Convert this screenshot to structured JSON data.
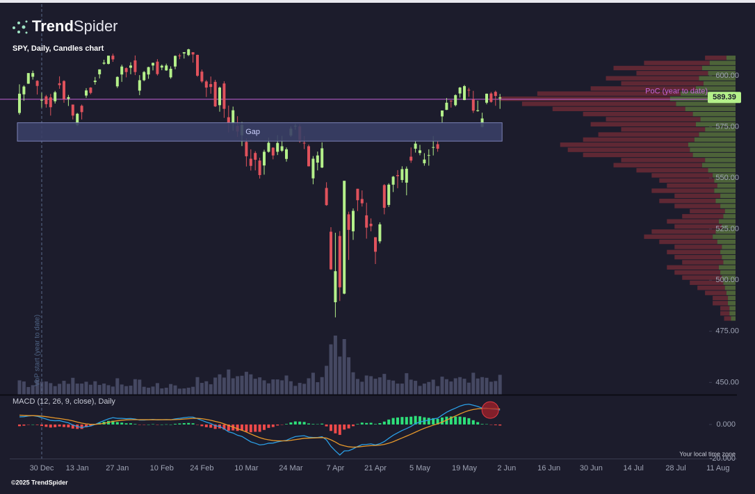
{
  "header": {
    "brand_bold": "Trend",
    "brand_light": "Spider",
    "footer": "©2025 TrendSpider"
  },
  "chart_data": [
    {
      "type": "candlestick",
      "title": "SPY, Daily, Candles chart",
      "categories": [
        null,
        null,
        null,
        null,
        null,
        "30 Dec",
        null,
        null,
        null,
        null,
        null,
        null,
        null,
        "13 Jan",
        null,
        null,
        null,
        null,
        null,
        null,
        null,
        null,
        "27 Jan",
        null,
        null,
        null,
        null,
        null,
        null,
        null,
        null,
        null,
        "10 Feb",
        null,
        null,
        null,
        null,
        null,
        null,
        null,
        null,
        "24 Feb",
        null,
        null,
        null,
        null,
        null,
        null,
        null,
        null,
        null,
        "10 Mar",
        null,
        null,
        null,
        null,
        null,
        null,
        null,
        null,
        null,
        "24 Mar",
        null,
        null,
        null,
        null,
        null,
        null,
        null,
        null,
        null,
        "7 Apr",
        null,
        null,
        null,
        null,
        null,
        null,
        null,
        null,
        "21 Apr",
        null,
        null,
        null,
        null,
        null,
        null,
        null,
        null,
        null,
        "5 May",
        null,
        null,
        null,
        null,
        null,
        null,
        null,
        null,
        null,
        "19 May",
        null,
        null,
        null,
        null,
        null,
        null,
        null,
        null
      ],
      "xticks_future": [
        "2 Jun",
        "16 Jun",
        "30 Jun",
        "14 Jul",
        "28 Jul",
        "11 Aug"
      ],
      "open": [
        581.8,
        590.9,
        596.1,
        599.5,
        597.5,
        587.9,
        589.9,
        589.4,
        587.5,
        596.3,
        597.4,
        588.7,
        585.9,
        575.8,
        585.3,
        590.3,
        594.2,
        596.9,
        600.7,
        605.9,
        605.8,
        609.8,
        594.8,
        600.6,
        603.7,
        603.9,
        607.5,
        592.7,
        597.8,
        600.6,
        605.0,
        606.9,
        604.0,
        602.6,
        599.2,
        604.5,
        609.9,
        610.9,
        610.1,
        611.5,
        610.2,
        602.0,
        597.2,
        595.9,
        597.0,
        585.6,
        596.2,
        579.7,
        576.7,
        575.5,
        570.9,
        567.6,
        559.4,
        562.2,
        558.5,
        556.1,
        562.8,
        564.8,
        562.8,
        563.3,
        559.3,
        570.8,
        575.3,
        575.2,
        567.2,
        565.5,
        549.8,
        557.5,
        555.1,
        545.1,
        523.7,
        489.2,
        521.6,
        493.4,
        532.2,
        523.9,
        544.7,
        539.7,
        531.7,
        527.6,
        521.0,
        519.0,
        546.5,
        536.8,
        546.7,
        551.4,
        549.0,
        547.7,
        560.4,
        564.3,
        562.2,
        557.2,
        561.0,
        565.1,
        566.5,
        580.1,
        583.3,
        587.8,
        585.6,
        591.3,
        588.1,
        593.1,
        588.4,
        582.7,
        575.0,
        586.8,
        591.3,
        592.1,
        588.9
      ],
      "high": [
        595.8,
        595.3,
        601.3,
        602.5,
        597.8,
        591.7,
        590.6,
        591.1,
        592.6,
        599.7,
        597.8,
        590.6,
        585.9,
        581.8,
        585.9,
        593.9,
        594.4,
        599.4,
        603.1,
        607.8,
        609.8,
        610.8,
        599.7,
        605.4,
        604.1,
        606.6,
        609.9,
        600.3,
        602.3,
        604.4,
        606.4,
        608.1,
        605.5,
        605.9,
        604.6,
        609.9,
        610.8,
        611.5,
        613.2,
        611.5,
        610.3,
        603.0,
        597.9,
        599.6,
        598.0,
        594.7,
        597.3,
        585.4,
        584.9,
        580.2,
        577.4,
        569.4,
        564.0,
        563.1,
        559.9,
        563.8,
        569.7,
        565.0,
        570.9,
        570.6,
        564.9,
        575.2,
        576.4,
        576.3,
        570.5,
        566.3,
        560.7,
        562.9,
        567.4,
        547.9,
        525.9,
        523.2,
        524.0,
        548.6,
        533.5,
        535.1,
        544.7,
        543.9,
        537.9,
        530.2,
        521.0,
        528.3,
        547.0,
        547.4,
        551.0,
        553.8,
        555.7,
        555.6,
        564.9,
        568.0,
        566.2,
        562.1,
        564.0,
        570.5,
        568.0,
        583.0,
        589.1,
        588.0,
        590.9,
        594.5,
        595.5,
        594.1,
        592.6,
        587.8,
        581.9,
        591.3,
        592.0,
        592.7,
        591.1
      ],
      "low": [
        580.9,
        587.7,
        596.0,
        598.1,
        590.8,
        584.4,
        584.4,
        580.5,
        586.4,
        593.6,
        586.8,
        585.2,
        578.6,
        575.4,
        578.6,
        589.2,
        590.9,
        595.6,
        598.7,
        605.4,
        605.5,
        606.8,
        594.0,
        597.0,
        599.2,
        600.7,
        600.3,
        590.5,
        597.3,
        598.5,
        602.6,
        600.1,
        602.7,
        602.4,
        598.5,
        603.2,
        608.1,
        608.4,
        609.6,
        606.4,
        599.5,
        596.5,
        589.6,
        591.2,
        584.7,
        582.4,
        579.4,
        572.3,
        573.1,
        570.1,
        565.6,
        555.6,
        553.6,
        553.7,
        549.7,
        551.6,
        562.4,
        559.1,
        561.2,
        562.7,
        558.0,
        570.1,
        573.6,
        567.2,
        564.1,
        555.6,
        546.9,
        553.7,
        554.8,
        536.4,
        505.0,
        481.8,
        489.8,
        493.1,
        509.9,
        519.7,
        533.8,
        536.0,
        520.3,
        523.9,
        507.9,
        518.0,
        532.2,
        535.8,
        543.1,
        545.0,
        547.7,
        541.5,
        557.4,
        562.4,
        561.1,
        556.0,
        556.0,
        561.0,
        562.8,
        577.0,
        583.2,
        584.4,
        585.0,
        589.3,
        588.0,
        589.7,
        581.8,
        582.4,
        574.7,
        586.0,
        586.8,
        585.3,
        583.8
      ],
      "close": [
        591.2,
        594.7,
        601.3,
        601.3,
        595.0,
        588.2,
        586.1,
        584.6,
        591.9,
        595.4,
        588.6,
        589.5,
        580.5,
        581.4,
        582.2,
        592.8,
        591.6,
        597.6,
        603.1,
        606.4,
        609.8,
        608.0,
        599.4,
        604.5,
        601.8,
        605.0,
        601.8,
        597.8,
        601.8,
        604.2,
        606.3,
        600.8,
        604.9,
        605.0,
        603.4,
        609.7,
        609.7,
        611.5,
        612.9,
        610.4,
        600.0,
        597.2,
        594.2,
        594.5,
        585.0,
        594.2,
        583.8,
        576.9,
        583.1,
        572.7,
        575.9,
        560.6,
        555.9,
        558.9,
        551.4,
        562.8,
        567.2,
        561.0,
        567.1,
        565.5,
        564.0,
        574.1,
        575.5,
        568.6,
        567.1,
        555.7,
        559.4,
        561.0,
        564.5,
        536.7,
        505.3,
        504.4,
        496.5,
        548.6,
        524.6,
        533.9,
        539.1,
        537.6,
        525.7,
        526.4,
        513.9,
        527.3,
        535.4,
        546.7,
        550.6,
        550.9,
        554.3,
        554.5,
        558.5,
        566.8,
        563.5,
        559.0,
        561.2,
        565.1,
        564.3,
        583.0,
        586.8,
        587.6,
        590.5,
        594.2,
        594.9,
        592.9,
        582.9,
        583.1,
        579.1,
        591.2,
        587.2,
        590.1,
        589.39
      ],
      "volume": [
        62,
        57,
        33,
        41,
        64,
        56,
        57,
        50,
        37,
        47,
        60,
        47,
        73,
        48,
        48,
        56,
        43,
        58,
        42,
        48,
        41,
        35,
        71,
        44,
        37,
        39,
        67,
        65,
        34,
        30,
        35,
        50,
        27,
        30,
        46,
        40,
        26,
        27,
        30,
        34,
        76,
        51,
        58,
        45,
        74,
        88,
        74,
        109,
        71,
        80,
        82,
        99,
        88,
        69,
        75,
        62,
        49,
        66,
        66,
        62,
        83,
        58,
        38,
        51,
        47,
        71,
        95,
        54,
        76,
        125,
        218,
        256,
        165,
        241,
        162,
        97,
        68,
        56,
        83,
        80,
        69,
        75,
        90,
        64,
        61,
        48,
        48,
        93,
        65,
        60,
        38,
        48,
        55,
        65,
        37,
        78,
        67,
        57,
        71,
        76,
        69,
        52,
        95,
        70,
        76,
        73,
        56,
        59,
        86
      ],
      "up_color": "#b4f08a",
      "down_color": "#e0525c",
      "volume_color": "#454862",
      "ylim": [
        444,
        635
      ],
      "yticks": [
        {
          "value": 450,
          "label": "450.00"
        },
        {
          "value": 475,
          "label": "475.00"
        },
        {
          "value": 500,
          "label": "500.00"
        },
        {
          "value": 525,
          "label": "525.00"
        },
        {
          "value": 550,
          "label": "550.00"
        },
        {
          "value": 575,
          "label": "575.00"
        },
        {
          "value": 600,
          "label": "600.00"
        }
      ],
      "last_price": 589.39,
      "last_price_color": "#b4f08a",
      "poc": {
        "label": "PoC (year to date)",
        "value": 588.5,
        "color": "#c563d8"
      },
      "gap": {
        "label": "Gap",
        "low": 568.0,
        "high": 577.0
      },
      "vbp_start": {
        "label": "VbP start (year to date)",
        "date": "30 Dec"
      },
      "profile": {
        "bins": [
          480,
          482.5,
          485,
          487.5,
          490,
          492.5,
          495,
          497.5,
          500,
          502.5,
          505,
          507.5,
          510,
          512.5,
          515,
          517.5,
          520,
          522.5,
          525,
          527.5,
          530,
          532.5,
          535,
          537.5,
          540,
          542.5,
          545,
          547.5,
          550,
          552.5,
          555,
          557.5,
          560,
          562.5,
          565,
          567.5,
          570,
          572.5,
          575,
          577.5,
          580,
          582.5,
          585,
          587.5,
          590,
          592.5,
          595,
          597.5,
          600,
          602.5,
          605,
          607.5,
          610
        ],
        "up": [
          6,
          8,
          8,
          10,
          10,
          12,
          14,
          16,
          18,
          20,
          22,
          16,
          18,
          20,
          18,
          24,
          30,
          26,
          18,
          22,
          16,
          14,
          20,
          26,
          20,
          28,
          24,
          28,
          30,
          36,
          44,
          40,
          56,
          60,
          62,
          54,
          48,
          40,
          52,
          46,
          56,
          66,
          78,
          86,
          72,
          52,
          42,
          48,
          36,
          44,
          34,
          12
        ],
        "down": [
          9,
          12,
          12,
          20,
          20,
          28,
          36,
          44,
          52,
          60,
          68,
          54,
          62,
          70,
          62,
          76,
          90,
          84,
          62,
          68,
          54,
          46,
          60,
          74,
          60,
          82,
          66,
          72,
          80,
          94,
          116,
          110,
          144,
          160,
          168,
          146,
          132,
          110,
          138,
          124,
          144,
          174,
          202,
          224,
          188,
          138,
          108,
          122,
          94,
          116,
          86,
          28
        ],
        "up_color": "#56703c",
        "down_color": "#6b2a36"
      }
    },
    {
      "type": "macd",
      "title": "MACD (12, 26, 9, close), Daily",
      "series": [
        {
          "color": "#2b9fe6",
          "values": [
            4.5,
            4.6,
            5.0,
            5.2,
            4.8,
            4.0,
            3.2,
            2.4,
            2.2,
            2.3,
            1.6,
            1.0,
            -0.3,
            -1.2,
            -1.8,
            -1.2,
            -0.9,
            0.0,
            1.2,
            2.3,
            3.3,
            4.0,
            3.6,
            3.6,
            3.4,
            3.5,
            3.2,
            2.6,
            2.6,
            2.8,
            3.0,
            2.7,
            2.8,
            2.9,
            2.8,
            3.3,
            3.6,
            4.0,
            4.3,
            4.3,
            3.4,
            2.4,
            1.4,
            0.6,
            -0.8,
            -1.1,
            -2.6,
            -4.3,
            -5.0,
            -6.3,
            -7.0,
            -8.6,
            -10.2,
            -11.0,
            -12.0,
            -11.7,
            -11.0,
            -10.9,
            -10.2,
            -9.7,
            -9.3,
            -8.1,
            -7.1,
            -6.8,
            -6.6,
            -7.4,
            -7.6,
            -7.6,
            -7.2,
            -9.1,
            -12.8,
            -15.5,
            -17.9,
            -15.5,
            -15.4,
            -14.3,
            -12.9,
            -11.8,
            -11.7,
            -11.4,
            -12.0,
            -11.3,
            -10.0,
            -8.1,
            -6.3,
            -4.9,
            -3.5,
            -2.4,
            -1.1,
            0.5,
            1.5,
            2.0,
            2.6,
            3.3,
            3.7,
            5.5,
            7.2,
            8.5,
            9.6,
            10.8,
            11.6,
            11.9,
            11.3,
            10.6,
            9.6,
            9.6,
            9.1,
            8.9,
            8.5
          ]
        },
        {
          "color": "#e8992b",
          "values": [
            5.5,
            5.3,
            5.2,
            5.2,
            5.1,
            4.9,
            4.6,
            4.2,
            3.8,
            3.5,
            3.1,
            2.7,
            2.1,
            1.4,
            0.8,
            0.4,
            0.1,
            0.1,
            0.3,
            0.7,
            1.2,
            1.8,
            2.2,
            2.5,
            2.7,
            2.8,
            2.9,
            2.8,
            2.8,
            2.8,
            2.8,
            2.8,
            2.8,
            2.8,
            2.8,
            2.9,
            3.0,
            3.2,
            3.4,
            3.6,
            3.6,
            3.4,
            3.0,
            2.5,
            1.8,
            1.2,
            0.4,
            -0.6,
            -1.5,
            -2.5,
            -3.4,
            -4.4,
            -5.6,
            -6.7,
            -7.7,
            -8.5,
            -9.0,
            -9.4,
            -9.6,
            -9.6,
            -9.6,
            -9.3,
            -8.9,
            -8.5,
            -8.1,
            -8.0,
            -7.9,
            -7.8,
            -7.7,
            -8.0,
            -9.0,
            -10.3,
            -11.8,
            -12.5,
            -13.1,
            -13.3,
            -13.2,
            -12.9,
            -12.6,
            -12.4,
            -12.3,
            -12.1,
            -11.7,
            -11.0,
            -10.1,
            -9.0,
            -7.9,
            -6.8,
            -5.7,
            -4.5,
            -3.3,
            -2.2,
            -1.3,
            -0.4,
            0.4,
            1.4,
            2.6,
            3.8,
            5.0,
            6.2,
            7.3,
            8.2,
            8.8,
            9.2,
            9.3,
            9.4,
            9.3,
            9.3,
            9.1
          ]
        }
      ],
      "histogram": {
        "up_color": "#2ee07a",
        "down_color": "#ef4a4a",
        "values": [
          -1.0,
          -0.7,
          -0.2,
          0.0,
          -0.3,
          -0.9,
          -1.4,
          -1.8,
          -1.6,
          -1.2,
          -1.5,
          -1.7,
          -2.4,
          -2.6,
          -2.6,
          -1.6,
          -1.0,
          -0.1,
          0.9,
          1.6,
          2.1,
          2.2,
          1.4,
          1.1,
          0.7,
          0.7,
          0.3,
          -0.2,
          -0.2,
          0.0,
          0.2,
          -0.1,
          0.0,
          0.1,
          0.0,
          0.4,
          0.6,
          0.8,
          0.9,
          0.7,
          -0.2,
          -1.0,
          -1.6,
          -1.9,
          -2.6,
          -2.3,
          -3.0,
          -3.7,
          -3.5,
          -3.8,
          -3.6,
          -4.2,
          -4.6,
          -4.3,
          -4.3,
          -3.2,
          -2.0,
          -1.5,
          -0.6,
          -0.1,
          0.3,
          1.2,
          1.8,
          1.7,
          1.5,
          0.6,
          0.3,
          0.2,
          0.5,
          -1.1,
          -3.8,
          -5.2,
          -6.1,
          -3.0,
          -2.3,
          -1.0,
          0.3,
          1.1,
          0.9,
          1.0,
          0.3,
          0.8,
          1.7,
          2.9,
          3.8,
          4.1,
          4.4,
          4.4,
          4.6,
          5.0,
          4.8,
          4.2,
          3.9,
          3.7,
          3.3,
          4.1,
          4.6,
          4.7,
          4.6,
          4.6,
          4.3,
          3.7,
          2.5,
          1.4,
          0.3,
          0.2,
          -0.2,
          -0.4,
          -0.6
        ]
      },
      "ylim": [
        -20,
        16.7
      ],
      "yticks": [
        {
          "value": 0,
          "label": "0.000"
        },
        {
          "value": -20,
          "label": "-20.000"
        }
      ],
      "timezone": "Your local time zone"
    }
  ]
}
